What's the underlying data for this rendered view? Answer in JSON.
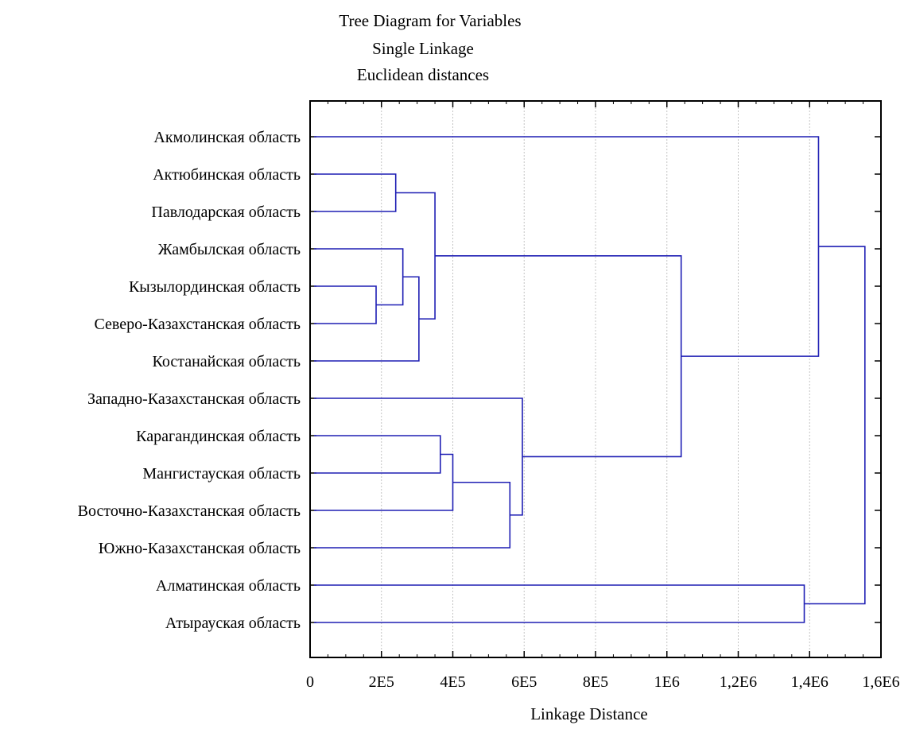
{
  "chart_data": {
    "type": "dendrogram",
    "title": "Tree Diagram for  Variables",
    "subtitle_lines": [
      "Single Linkage",
      "Euclidean distances"
    ],
    "xlabel": "Linkage Distance",
    "xlim": [
      0,
      1600000
    ],
    "x_ticks": [
      {
        "value": 0,
        "label": "0"
      },
      {
        "value": 200000,
        "label": "2E5"
      },
      {
        "value": 400000,
        "label": "4E5"
      },
      {
        "value": 600000,
        "label": "6E5"
      },
      {
        "value": 800000,
        "label": "8E5"
      },
      {
        "value": 1000000,
        "label": "1E6"
      },
      {
        "value": 1200000,
        "label": "1,2E6"
      },
      {
        "value": 1400000,
        "label": "1,4E6"
      },
      {
        "value": 1600000,
        "label": "1,6E6"
      }
    ],
    "grid": true,
    "leaves": [
      "Акмолинская область",
      "Актюбинская область",
      "Павлодарская область",
      "Жамбылская область",
      "Кызылординская область",
      "Северо-Казахстанская область",
      "Костанайская область",
      "Западно-Казахстанская область",
      "Карагандинская область",
      "Мангистауская область",
      "Восточно-Казахстанская область",
      "Южно-Казахстанская область",
      "Алматинская область",
      "Атырауская область"
    ],
    "merges": [
      {
        "id": "m1",
        "left": "L4",
        "right": "L5",
        "distance": 185000
      },
      {
        "id": "m2",
        "left": "L1",
        "right": "L2",
        "distance": 240000
      },
      {
        "id": "m3",
        "left": "L3",
        "right": "m1",
        "distance": 260000
      },
      {
        "id": "m4",
        "left": "m3",
        "right": "L6",
        "distance": 305000
      },
      {
        "id": "m5",
        "left": "m2",
        "right": "m4",
        "distance": 350000
      },
      {
        "id": "m6",
        "left": "L8",
        "right": "L9",
        "distance": 365000
      },
      {
        "id": "m7",
        "left": "m6",
        "right": "L10",
        "distance": 400000
      },
      {
        "id": "m8",
        "left": "m7",
        "right": "L11",
        "distance": 560000
      },
      {
        "id": "m9",
        "left": "L7",
        "right": "m8",
        "distance": 595000
      },
      {
        "id": "m10",
        "left": "m5",
        "right": "m9",
        "distance": 1040000
      },
      {
        "id": "m11",
        "left": "L12",
        "right": "L13",
        "distance": 1385000
      },
      {
        "id": "m12",
        "left": "L0",
        "right": "m10",
        "distance": 1425000
      },
      {
        "id": "m13",
        "left": "m12",
        "right": "m11",
        "distance": 1555000
      }
    ],
    "colors": {
      "branch": "#1f1fb4",
      "grid": "#c4c4c4",
      "frame": "#000000"
    }
  }
}
